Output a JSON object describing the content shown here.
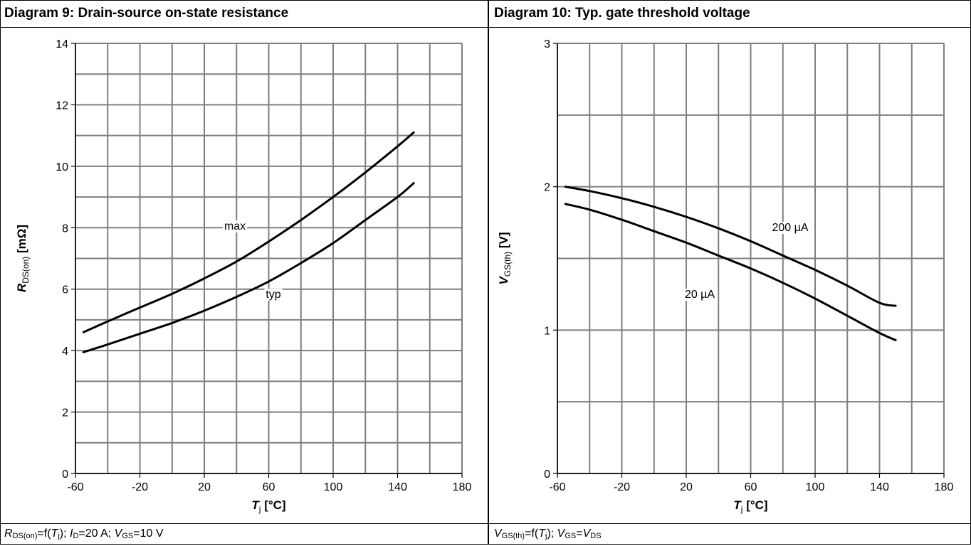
{
  "left": {
    "title": "Diagram 9: Drain-source on-state resistance",
    "caption": {
      "a_sym": "R",
      "a_sub": "DS(on)",
      "a_eq": "=f(",
      "a_var": "T",
      "a_varsub": "j",
      "a_close": "); ",
      "b_sym": "I",
      "b_sub": "D",
      "b_eq": "=20 A; ",
      "c_sym": "V",
      "c_sub": "GS",
      "c_eq": "=10 V"
    }
  },
  "right": {
    "title": "Diagram 10: Typ. gate threshold voltage",
    "caption": {
      "a_sym": "V",
      "a_sub": "GS(th)",
      "a_eq": "=f(",
      "a_var": "T",
      "a_varsub": "j",
      "a_close": "); ",
      "b_sym": "V",
      "b_sub": "GS",
      "b_eq": "=",
      "c_sym": "V",
      "c_sub": "DS"
    }
  },
  "chart_data": [
    {
      "type": "line",
      "title": "Diagram 9: Drain-source on-state resistance",
      "xlabel": {
        "main": "T",
        "sub": "j",
        "unit": " [°C]"
      },
      "ylabel": {
        "main": "R",
        "sub": "DS(on)",
        "unit": " [mΩ]"
      },
      "xlim": [
        -60,
        180
      ],
      "ylim": [
        0,
        14
      ],
      "xticks": [
        -60,
        -20,
        20,
        60,
        100,
        140,
        180
      ],
      "yticks": [
        0,
        2,
        4,
        6,
        8,
        10,
        12,
        14
      ],
      "grid": true,
      "series": [
        {
          "name": "max",
          "x": [
            -55,
            -40,
            -20,
            0,
            20,
            40,
            60,
            80,
            100,
            120,
            140,
            150
          ],
          "y": [
            4.6,
            4.95,
            5.4,
            5.85,
            6.35,
            6.9,
            7.55,
            8.25,
            9.0,
            9.8,
            10.65,
            11.1
          ]
        },
        {
          "name": "typ",
          "x": [
            -55,
            -40,
            -20,
            0,
            20,
            40,
            60,
            80,
            100,
            120,
            140,
            150
          ],
          "y": [
            3.95,
            4.2,
            4.55,
            4.9,
            5.3,
            5.75,
            6.25,
            6.85,
            7.5,
            8.25,
            9.0,
            9.45
          ]
        }
      ]
    },
    {
      "type": "line",
      "title": "Diagram 10: Typ. gate threshold voltage",
      "xlabel": {
        "main": "T",
        "sub": "j",
        "unit": " [°C]"
      },
      "ylabel": {
        "main": "V",
        "sub": "GS(th)",
        "unit": " [V]"
      },
      "xlim": [
        -60,
        180
      ],
      "ylim": [
        0,
        3
      ],
      "xticks": [
        -60,
        -20,
        20,
        60,
        100,
        140,
        180
      ],
      "yticks": [
        0,
        1,
        2,
        3
      ],
      "grid": true,
      "series": [
        {
          "name": "200 µA",
          "x": [
            -55,
            -40,
            -20,
            0,
            20,
            40,
            60,
            80,
            100,
            120,
            140,
            150
          ],
          "y": [
            2.0,
            1.97,
            1.92,
            1.86,
            1.79,
            1.71,
            1.62,
            1.52,
            1.42,
            1.31,
            1.19,
            1.17
          ]
        },
        {
          "name": "20 µA",
          "x": [
            -55,
            -40,
            -20,
            0,
            20,
            40,
            60,
            80,
            100,
            120,
            140,
            150
          ],
          "y": [
            1.88,
            1.84,
            1.77,
            1.69,
            1.61,
            1.52,
            1.43,
            1.33,
            1.22,
            1.1,
            0.98,
            0.93
          ]
        }
      ]
    }
  ]
}
